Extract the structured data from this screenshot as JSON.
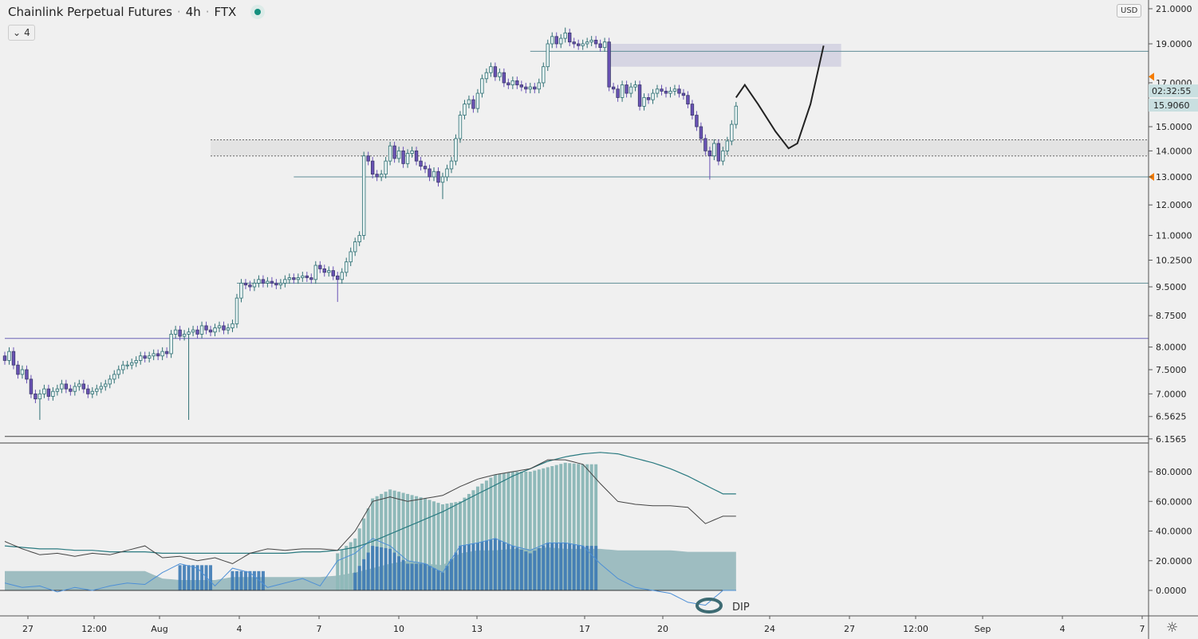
{
  "header": {
    "title": "Chainlink Perpetual Futures",
    "interval": "4h",
    "exchange": "FTX",
    "status_color": "#14907e",
    "collapse_label": "4",
    "sep": "·"
  },
  "axis": {
    "currency_label": "USD",
    "last_price": "15.9060",
    "countdown": "02:32:55",
    "settings_icon": "gear-icon"
  },
  "colors": {
    "up": "#2e6f73",
    "up_fill": "#e8f3f3",
    "down": "#6a52b5",
    "level": "#5f8d96",
    "support_purple": "#6a62b5",
    "osc": "#444444",
    "ma": "#2a7a80",
    "area": "#8fb4b8",
    "hist_light": "#8fb9b9",
    "hist_blue": "#3d7ab5",
    "line_blue": "#4d8fd6"
  },
  "chart_data": {
    "type": "candlestick",
    "title": "",
    "y_scale": "log",
    "ylim": [
      6.1565,
      21.0
    ],
    "y_ticks": [
      "21.0000",
      "19.0000",
      "17.0000",
      "15.0000",
      "14.0000",
      "13.0000",
      "12.0000",
      "11.0000",
      "10.2500",
      "9.5000",
      "8.7500",
      "8.0000",
      "7.5000",
      "7.0000",
      "6.5625",
      "6.1565"
    ],
    "x_ticks": [
      "27",
      "12:00",
      "Aug",
      "4",
      "7",
      "10",
      "13",
      "17",
      "20",
      "24",
      "27",
      "12:00",
      "Sep",
      "4",
      "7"
    ],
    "first_open": 7.8,
    "closes": [
      7.7,
      7.9,
      7.6,
      7.4,
      7.5,
      7.3,
      7.0,
      6.9,
      7.0,
      7.1,
      6.95,
      7.05,
      7.1,
      7.2,
      7.1,
      7.05,
      7.15,
      7.2,
      7.1,
      7.0,
      7.05,
      7.1,
      7.15,
      7.2,
      7.3,
      7.4,
      7.5,
      7.6,
      7.6,
      7.65,
      7.7,
      7.8,
      7.75,
      7.8,
      7.85,
      7.8,
      7.9,
      7.85,
      8.3,
      8.4,
      8.25,
      8.3,
      8.35,
      8.4,
      8.3,
      8.5,
      8.4,
      8.35,
      8.45,
      8.5,
      8.4,
      8.45,
      8.55,
      9.2,
      9.6,
      9.55,
      9.5,
      9.6,
      9.7,
      9.6,
      9.65,
      9.6,
      9.55,
      9.6,
      9.7,
      9.75,
      9.7,
      9.75,
      9.8,
      9.75,
      9.7,
      10.1,
      10.0,
      9.9,
      9.95,
      9.8,
      9.7,
      9.9,
      10.2,
      10.5,
      10.8,
      11.0,
      13.8,
      13.6,
      13.1,
      13.0,
      13.1,
      13.6,
      14.2,
      13.7,
      14.0,
      13.5,
      13.9,
      14.0,
      13.6,
      13.4,
      13.3,
      13.0,
      13.2,
      12.8,
      13.0,
      13.3,
      13.6,
      14.5,
      15.5,
      16.0,
      16.2,
      15.8,
      16.5,
      17.2,
      17.5,
      17.8,
      17.3,
      17.5,
      17.0,
      16.9,
      17.1,
      16.9,
      16.8,
      16.7,
      16.8,
      16.7,
      17.0,
      17.8,
      19.0,
      19.4,
      19.0,
      19.3,
      19.6,
      19.1,
      19.0,
      18.9,
      19.0,
      19.1,
      19.2,
      19.0,
      18.8,
      19.1,
      16.8,
      16.7,
      16.3,
      16.9,
      16.5,
      16.8,
      16.9,
      15.9,
      16.3,
      16.2,
      16.5,
      16.7,
      16.6,
      16.5,
      16.6,
      16.7,
      16.5,
      16.4,
      16.0,
      15.5,
      15.0,
      14.5,
      14.0,
      13.8,
      14.3,
      13.6,
      14.0,
      14.4,
      15.1,
      15.906
    ],
    "wick_extremes": [
      {
        "candle": 8,
        "low": 6.5
      },
      {
        "candle": 42,
        "low": 6.5
      },
      {
        "candle": 76,
        "low": 9.1
      },
      {
        "candle": 100,
        "low": 12.2
      },
      {
        "candle": 128,
        "high": 19.9
      },
      {
        "candle": 161,
        "low": 12.9
      }
    ],
    "levels": [
      {
        "price": 18.6,
        "from_candle": 120,
        "color": "level"
      },
      {
        "price": 13.0,
        "from_candle": 66,
        "color": "level"
      },
      {
        "price": 9.6,
        "from_candle": 53,
        "color": "level"
      },
      {
        "price": 8.2,
        "from_candle": 0,
        "color": "support_purple"
      },
      {
        "price": 6.2,
        "from_candle": 0,
        "color": "osc"
      }
    ],
    "zones": [
      {
        "top": 19.0,
        "bottom": 17.8,
        "from_candle": 138,
        "to_candle": 191,
        "fill": "#d6d5e3"
      },
      {
        "top": 14.45,
        "bottom": 13.8,
        "from_candle": 47,
        "to_candle": 262,
        "fill": "#e3e3e3",
        "dotted": true
      }
    ],
    "price_markers": [
      17.3,
      13.0
    ],
    "projection_path": [
      [
        167,
        16.3
      ],
      [
        169,
        16.9
      ],
      [
        172,
        16.0
      ],
      [
        176,
        14.8
      ],
      [
        179,
        14.1
      ],
      [
        181,
        14.3
      ],
      [
        184,
        16.0
      ],
      [
        187,
        18.9
      ]
    ],
    "indicator": {
      "ylim": [
        -5,
        95
      ],
      "y_ticks": [
        "80.0000",
        "60.0000",
        "40.0000",
        "20.0000",
        "0.0000"
      ],
      "keypoint_step_candles": 4,
      "osc": [
        33,
        28,
        24,
        25,
        23,
        25,
        24,
        27,
        30,
        22,
        23,
        20,
        22,
        18,
        25,
        28,
        27,
        28,
        28,
        27,
        40,
        60,
        63,
        60,
        62,
        64,
        70,
        75,
        78,
        80,
        82,
        88,
        88,
        85,
        72,
        60,
        58,
        57,
        57,
        56,
        45,
        50
      ],
      "ma": [
        30,
        29,
        28,
        28,
        27,
        27,
        26,
        26,
        26,
        25,
        25,
        25,
        25,
        25,
        25,
        25,
        25,
        26,
        26,
        27,
        29,
        33,
        38,
        43,
        48,
        53,
        59,
        65,
        71,
        77,
        82,
        87,
        90,
        92,
        93,
        92,
        89,
        86,
        82,
        77,
        71,
        65
      ],
      "area": [
        13,
        13,
        13,
        13,
        13,
        13,
        13,
        13,
        13,
        8,
        7,
        7,
        7,
        9,
        9,
        9,
        9,
        9,
        9,
        10,
        12,
        15,
        18,
        20,
        18,
        17,
        25,
        27,
        27,
        28,
        28,
        29,
        28,
        28,
        28,
        27,
        27,
        27,
        27,
        26,
        26,
        26
      ],
      "hist_light": [
        null,
        null,
        null,
        null,
        null,
        null,
        null,
        null,
        null,
        null,
        null,
        null,
        null,
        null,
        null,
        null,
        null,
        null,
        null,
        25,
        35,
        62,
        68,
        65,
        62,
        58,
        60,
        70,
        78,
        80,
        80,
        83,
        86,
        85,
        null,
        null,
        null,
        null,
        null,
        null,
        null,
        null
      ],
      "hist_blue": [
        null,
        null,
        null,
        null,
        null,
        null,
        null,
        null,
        null,
        null,
        17,
        17,
        null,
        13,
        13,
        null,
        null,
        null,
        null,
        null,
        12,
        30,
        28,
        18,
        18,
        12,
        30,
        32,
        35,
        30,
        25,
        32,
        32,
        30,
        null,
        null,
        null,
        null,
        null,
        null,
        null,
        null
      ],
      "line": [
        5,
        2,
        3,
        -1,
        2,
        0,
        3,
        5,
        4,
        12,
        18,
        15,
        3,
        15,
        12,
        2,
        5,
        8,
        3,
        20,
        25,
        35,
        30,
        20,
        18,
        12,
        30,
        32,
        35,
        30,
        27,
        32,
        32,
        30,
        18,
        8,
        2,
        0,
        -2,
        -8,
        -10,
        0
      ],
      "annotation": "DIP"
    }
  }
}
